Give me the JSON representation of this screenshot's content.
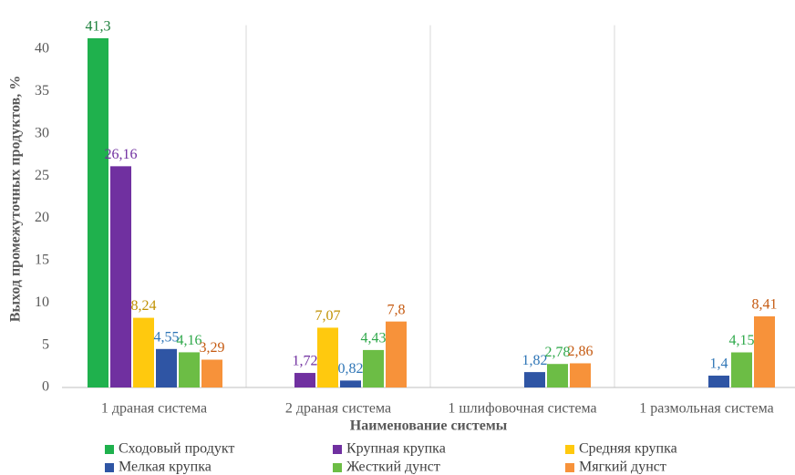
{
  "chart_data": {
    "type": "bar",
    "x_label": "Наименование системы",
    "y_label": "Выход промежуточных продуктов, %",
    "categories": [
      "1 драная система",
      "2 драная система",
      "1 шлифовочная система",
      "1 размольная система"
    ],
    "series": [
      {
        "name": "Сходовый продукт",
        "color": "#1fb14d",
        "label_color": "#1a7f3a",
        "values": [
          41.3,
          null,
          null,
          null
        ],
        "value_labels": [
          "41,3",
          null,
          null,
          null
        ]
      },
      {
        "name": "Крупная крупка",
        "color": "#7030a0",
        "label_color": "#7030a0",
        "values": [
          26.16,
          1.72,
          null,
          null
        ],
        "value_labels": [
          "26,16",
          "1,72",
          null,
          null
        ]
      },
      {
        "name": "Средняя крупка",
        "color": "#ffc90e",
        "label_color": "#c09000",
        "values": [
          8.24,
          7.07,
          null,
          null
        ],
        "value_labels": [
          "8,24",
          "7,07",
          null,
          null
        ]
      },
      {
        "name": "Мелкая крупка",
        "color": "#2f55a4",
        "label_color": "#2e75b6",
        "values": [
          4.55,
          0.82,
          1.82,
          1.4
        ],
        "value_labels": [
          "4,55",
          "0,82",
          "1,82",
          "1,4"
        ]
      },
      {
        "name": "Жесткий дунст",
        "color": "#6cbd45",
        "label_color": "#2ea84a",
        "values": [
          4.16,
          4.43,
          2.78,
          4.15
        ],
        "value_labels": [
          "4,16",
          "4,43",
          "2,78",
          "4,15"
        ]
      },
      {
        "name": "Мягкий дунст",
        "color": "#f7923a",
        "label_color": "#c55a11",
        "values": [
          3.29,
          7.8,
          2.86,
          8.41
        ],
        "value_labels": [
          "3,29",
          "7,8",
          "2,86",
          "8,41"
        ]
      }
    ],
    "ylim": [
      0,
      45
    ],
    "yticks": [
      0,
      5,
      10,
      15,
      20,
      25,
      30,
      35,
      40
    ],
    "grid": false,
    "legend": "bottom"
  }
}
